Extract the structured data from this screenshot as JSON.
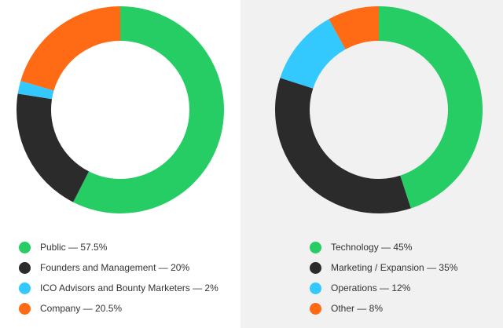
{
  "chart_data": [
    {
      "type": "pie",
      "donut": true,
      "title": "",
      "categories": [
        "Public",
        "Founders and Management",
        "ICO Advisors and Bounty Marketers",
        "Company"
      ],
      "values": [
        57.5,
        20,
        2,
        20.5
      ],
      "colors": [
        "#26cc64",
        "#2b2b2b",
        "#33c9ff",
        "#ff6a14"
      ],
      "legend": [
        {
          "label": "Public — 57.5%",
          "color": "#26cc64"
        },
        {
          "label": "Founders and Management — 20%",
          "color": "#2b2b2b"
        },
        {
          "label": "ICO Advisors and Bounty Marketers — 2%",
          "color": "#33c9ff"
        },
        {
          "label": "Company — 20.5%",
          "color": "#ff6a14"
        }
      ],
      "legend_position": "bottom"
    },
    {
      "type": "pie",
      "donut": true,
      "title": "",
      "categories": [
        "Technology",
        "Marketing / Expansion",
        "Operations",
        "Other"
      ],
      "values": [
        45,
        35,
        12,
        8
      ],
      "colors": [
        "#26cc64",
        "#2b2b2b",
        "#33c9ff",
        "#ff6a14"
      ],
      "legend": [
        {
          "label": "Technology — 45%",
          "color": "#26cc64"
        },
        {
          "label": "Marketing / Expansion — 35%",
          "color": "#2b2b2b"
        },
        {
          "label": "Operations — 12%",
          "color": "#33c9ff"
        },
        {
          "label": "Other — 8%",
          "color": "#ff6a14"
        }
      ],
      "legend_position": "bottom"
    }
  ]
}
